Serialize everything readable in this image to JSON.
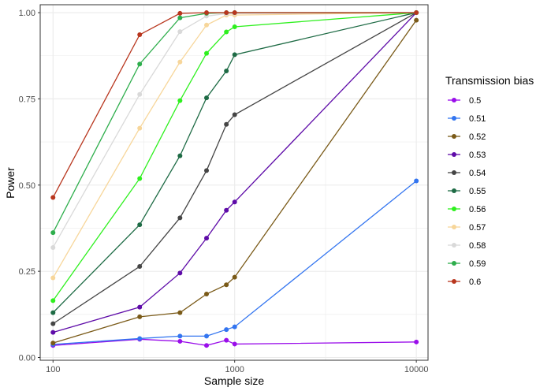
{
  "chart_data": {
    "type": "line",
    "xlabel": "Sample size",
    "ylabel": "Power",
    "x_scale": "log10",
    "xlim": [
      85,
      11600
    ],
    "ylim": [
      -0.008,
      1.023
    ],
    "x_ticks": [
      100,
      1000,
      10000
    ],
    "x_tick_labels": [
      "100",
      "1000",
      "10000"
    ],
    "y_ticks": [
      0,
      0.25,
      0.5,
      0.75,
      1
    ],
    "y_tick_labels": [
      "0.00",
      "0.25",
      "0.50",
      "0.75",
      "1.00"
    ],
    "grid": true,
    "legend": {
      "title": "Transmission bias",
      "position": "right"
    },
    "x": [
      100,
      300,
      500,
      700,
      900,
      1000,
      10000
    ],
    "series": [
      {
        "name": "0.5",
        "color": "#9A0EEA",
        "values": [
          0.035,
          0.053,
          0.047,
          0.035,
          0.05,
          0.039,
          0.045
        ]
      },
      {
        "name": "0.51",
        "color": "#3375F0",
        "values": [
          0.038,
          0.055,
          0.062,
          0.062,
          0.081,
          0.089,
          0.512
        ]
      },
      {
        "name": "0.52",
        "color": "#7A5A18",
        "values": [
          0.042,
          0.118,
          0.13,
          0.184,
          0.211,
          0.233,
          0.978
        ]
      },
      {
        "name": "0.53",
        "color": "#5E0BA8",
        "values": [
          0.073,
          0.146,
          0.245,
          0.346,
          0.427,
          0.451,
          1.0
        ]
      },
      {
        "name": "0.54",
        "color": "#454545",
        "values": [
          0.098,
          0.264,
          0.405,
          0.542,
          0.676,
          0.704,
          1.0
        ]
      },
      {
        "name": "0.55",
        "color": "#1E6B45",
        "values": [
          0.13,
          0.385,
          0.585,
          0.753,
          0.831,
          0.878,
          1.0
        ]
      },
      {
        "name": "0.56",
        "color": "#2EF01E",
        "values": [
          0.165,
          0.519,
          0.745,
          0.882,
          0.944,
          0.959,
          1.0
        ]
      },
      {
        "name": "0.57",
        "color": "#F7D69A",
        "values": [
          0.231,
          0.665,
          0.857,
          0.964,
          0.993,
          0.993,
          1.0
        ]
      },
      {
        "name": "0.58",
        "color": "#D9D9D9",
        "values": [
          0.319,
          0.763,
          0.945,
          0.99,
          0.997,
          0.998,
          1.0
        ]
      },
      {
        "name": "0.59",
        "color": "#2EAE4C",
        "values": [
          0.362,
          0.851,
          0.985,
          0.998,
          1.0,
          1.0,
          1.0
        ]
      },
      {
        "name": "0.6",
        "color": "#B8361E",
        "values": [
          0.464,
          0.936,
          0.998,
          1.0,
          1.0,
          1.0,
          1.0
        ]
      }
    ]
  }
}
